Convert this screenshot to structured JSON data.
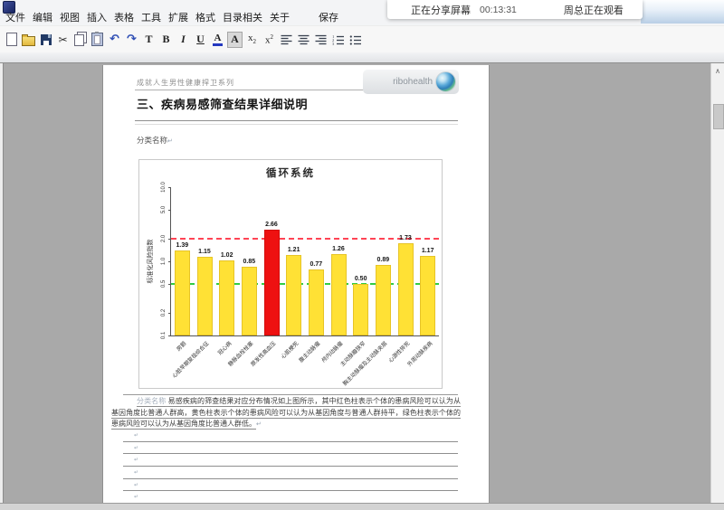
{
  "share_bar": {
    "status": "正在分享屏幕",
    "timer": "00:13:31",
    "viewer": "周总正在观看"
  },
  "menu": {
    "items": [
      {
        "id": "file",
        "label": "文件"
      },
      {
        "id": "edit",
        "label": "编辑"
      },
      {
        "id": "view",
        "label": "视图"
      },
      {
        "id": "insert",
        "label": "插入"
      },
      {
        "id": "table",
        "label": "表格"
      },
      {
        "id": "tools",
        "label": "工具"
      },
      {
        "id": "extend",
        "label": "扩展"
      },
      {
        "id": "format",
        "label": "格式"
      },
      {
        "id": "toc-related",
        "label": "目录相关"
      },
      {
        "id": "about",
        "label": "关于"
      },
      {
        "id": "save",
        "label": "保存"
      }
    ]
  },
  "toolbar": {
    "icons": [
      {
        "name": "new-document",
        "kind": "page"
      },
      {
        "name": "open",
        "kind": "folder"
      },
      {
        "name": "save",
        "kind": "floppy"
      },
      {
        "name": "cut",
        "kind": "cut",
        "glyph": "✂"
      },
      {
        "name": "copy",
        "kind": "copy"
      },
      {
        "name": "paste",
        "kind": "paste"
      },
      {
        "name": "undo",
        "kind": "glyph-blue",
        "glyph": "↶"
      },
      {
        "name": "redo",
        "kind": "glyph-blue",
        "glyph": "↷"
      },
      {
        "name": "font",
        "kind": "letter",
        "glyph": "T"
      },
      {
        "name": "bold",
        "kind": "letter",
        "glyph": "B"
      },
      {
        "name": "italic",
        "kind": "letter-italic",
        "glyph": "I"
      },
      {
        "name": "underline",
        "kind": "letter-underline",
        "glyph": "U"
      },
      {
        "name": "font-color",
        "kind": "font-color",
        "glyph": "A"
      },
      {
        "name": "highlight",
        "kind": "highlight",
        "glyph": "A"
      },
      {
        "name": "subscript",
        "kind": "subsup",
        "glyph": "x",
        "small": "2",
        "pos": "sub"
      },
      {
        "name": "superscript",
        "kind": "subsup",
        "glyph": "x",
        "small": "2",
        "pos": "sup"
      },
      {
        "name": "align-left",
        "kind": "stripes",
        "variant": "left"
      },
      {
        "name": "align-center",
        "kind": "stripes",
        "variant": "center"
      },
      {
        "name": "align-right",
        "kind": "stripes",
        "variant": "right"
      },
      {
        "name": "numbered-list",
        "kind": "list",
        "variant": "num"
      },
      {
        "name": "bullet-list",
        "kind": "list",
        "variant": "bullet"
      }
    ]
  },
  "document": {
    "header": "成就人生男性健康捍卫系列",
    "logo_text": "ribohealth",
    "title": "三、疾病易感筛查结果详细说明",
    "category_label": "分类名称",
    "paragraph_prefix": "分类名称",
    "paragraph": "易感疾病的筛查结果对应分布情况如上图所示，其中红色柱表示个体的患病风险可以认为从基因角度比普通人群高，黄色柱表示个体的患病风险可以认为从基因角度与普通人群持平，绿色柱表示个体的患病风险可以认为从基因角度比普通人群低。",
    "return_mark": "↵",
    "blank_line_count": 7
  },
  "scrollbar": {
    "up_glyph": "∧"
  },
  "chart_data": {
    "type": "bar",
    "title": "循环系统",
    "xlabel": "",
    "ylabel": "标准化风险指数",
    "yscale": "log",
    "ylim": [
      0.1,
      10
    ],
    "yticks": [
      10.0,
      5.0,
      2.0,
      1.0,
      0.5,
      0.2,
      0.1
    ],
    "grid": false,
    "categories": [
      "房颤",
      "心脏早期复极综合征",
      "冠心病",
      "静脉血栓栓塞",
      "原发性高血压",
      "心肌梗死",
      "腹主动脉瘤",
      "颅内动脉瘤",
      "主动脉瓣狭窄",
      "胸主动脉瘤及主动脉夹层",
      "心源性猝死",
      "外周动脉疾病"
    ],
    "values": [
      1.39,
      1.15,
      1.02,
      0.85,
      2.66,
      1.21,
      0.77,
      1.26,
      0.5,
      0.89,
      1.73,
      1.17
    ],
    "highlight_index": 4,
    "bar_palette": {
      "normal": "#ffe135",
      "high": "#ee1111"
    },
    "reference_lines": [
      {
        "value": 2.0,
        "color": "#ff4455",
        "style": "dashed"
      },
      {
        "value": 0.5,
        "color": "#33cc44",
        "style": "dashed"
      }
    ]
  }
}
